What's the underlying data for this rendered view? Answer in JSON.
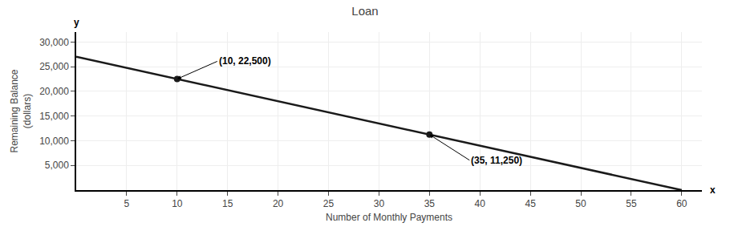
{
  "chart_data": {
    "type": "line",
    "title": "Loan",
    "xlabel": "Number of Monthly Payments",
    "ylabel": "Remaining Balance\n(dollars)",
    "series": [
      {
        "type": "line",
        "color": "#1a1a1a",
        "x": [
          0,
          60
        ],
        "values": [
          27000,
          0
        ]
      },
      {
        "type": "scatter",
        "color": "#1a1a1a",
        "marker": "circle",
        "x": [
          10,
          35
        ],
        "values": [
          22500,
          11250
        ]
      }
    ],
    "annotations": [
      {
        "text": "(10, 22,500)",
        "x": 10,
        "y": 22500
      },
      {
        "text": "(35, 11,250)",
        "x": 35,
        "y": 11250
      },
      {
        "text": "x",
        "x": 62,
        "y": 0
      },
      {
        "text": "y",
        "x": 0,
        "y": 32000
      }
    ],
    "xlim": [
      0,
      62
    ],
    "ylim": [
      0,
      32000
    ],
    "xticks": [
      5,
      10,
      15,
      20,
      25,
      30,
      35,
      40,
      45,
      50,
      55,
      60
    ],
    "yticks": [
      {
        "value": 5000,
        "label": "5,000"
      },
      {
        "value": 10000,
        "label": "10,000"
      },
      {
        "value": 15000,
        "label": "15,000"
      },
      {
        "value": 20000,
        "label": "20,000"
      },
      {
        "value": 25000,
        "label": "25,000"
      },
      {
        "value": 30000,
        "label": "30,000"
      }
    ],
    "grid": true
  }
}
